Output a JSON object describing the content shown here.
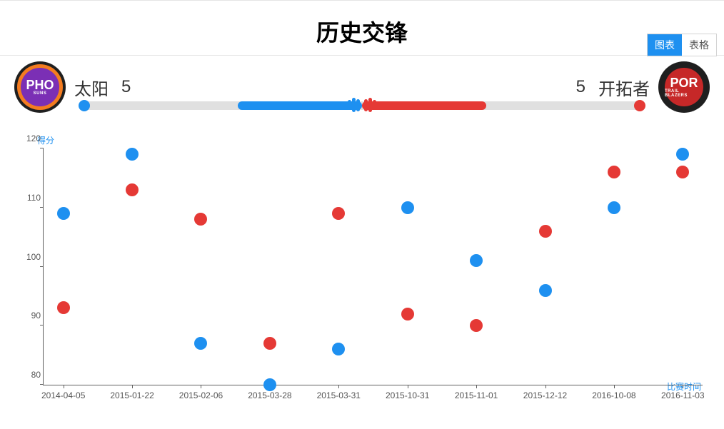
{
  "title": "历史交锋",
  "tabs": {
    "chart": "图表",
    "table": "表格",
    "active": "chart"
  },
  "team_left": {
    "name": "太阳",
    "wins": 5,
    "color": "#1e90f0",
    "logo": {
      "abbr": "PHO",
      "sub": "SUNS",
      "bg_outer": "#1f1f1f",
      "bg_inner": "#7b2fb5",
      "ring": "#f47c20"
    }
  },
  "team_right": {
    "name": "开拓者",
    "wins": 5,
    "color": "#e53935",
    "logo": {
      "abbr": "POR",
      "sub": "TRAIL BLAZERS",
      "bg_outer": "#1f1f1f",
      "bg_inner": "#c62828",
      "ring": "#1f1f1f"
    }
  },
  "bar": {
    "bg_color": "#e0e0e0",
    "blue_start_pct": 28,
    "blue_end_pct": 50,
    "red_start_pct": 50,
    "red_end_pct": 72
  },
  "chart": {
    "type": "scatter",
    "y_axis_label": "得分",
    "x_axis_label": "比赛时间",
    "ylim": [
      80,
      120
    ],
    "yticks": [
      80,
      90,
      100,
      110,
      120
    ],
    "x_categories": [
      "2014-04-05",
      "2015-01-22",
      "2015-02-06",
      "2015-03-28",
      "2015-03-31",
      "2015-10-31",
      "2015-11-01",
      "2015-12-12",
      "2016-10-08",
      "2016-11-03"
    ],
    "series": [
      {
        "name": "team_left_scores",
        "color": "#1e90f0",
        "marker_radius": 9,
        "values": [
          109,
          119,
          87,
          80,
          86,
          110,
          101,
          96,
          110,
          119
        ]
      },
      {
        "name": "team_right_scores",
        "color": "#e53935",
        "marker_radius": 9,
        "values": [
          93,
          113,
          108,
          87,
          109,
          92,
          90,
          106,
          116,
          116
        ]
      }
    ],
    "axis_color": "#606060",
    "tick_label_color": "#555555",
    "tick_fontsize": 12,
    "axis_label_color": "#1e90f0",
    "background_color": "#ffffff"
  }
}
